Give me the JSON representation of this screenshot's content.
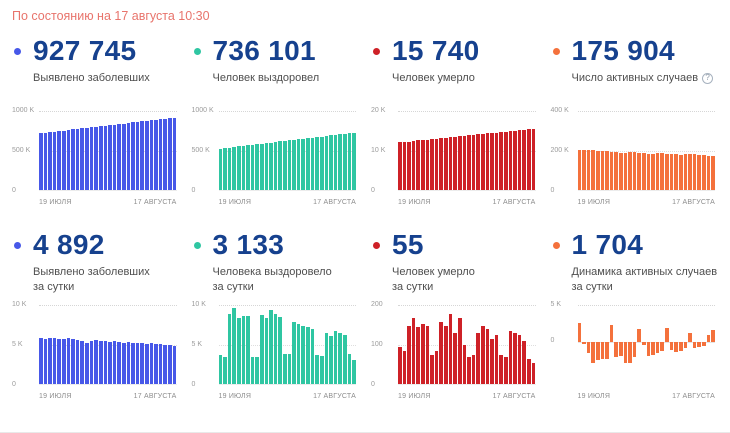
{
  "header": {
    "as_of_text": "По состоянию на 17 августа 10:30"
  },
  "colors": {
    "accent_blue": "#4758e8",
    "accent_teal": "#2fc6a2",
    "accent_red": "#ce2127",
    "accent_orange": "#f4713c",
    "number_navy": "#16418e",
    "header_coral": "#e8746c"
  },
  "cards": [
    {
      "value": "927 745",
      "label_line1": "Выявлено заболевших",
      "label_line2": "",
      "color": "#4758e8",
      "has_help": false
    },
    {
      "value": "736 101",
      "label_line1": "Человек выздоровел",
      "label_line2": "",
      "color": "#2fc6a2",
      "has_help": false
    },
    {
      "value": "15 740",
      "label_line1": "Человек умерло",
      "label_line2": "",
      "color": "#ce2127",
      "has_help": false
    },
    {
      "value": "175 904",
      "label_line1": "Число активных случаев",
      "label_line2": "",
      "color": "#f4713c",
      "has_help": true
    },
    {
      "value": "4 892",
      "label_line1": "Выявлено заболевших",
      "label_line2": "за сутки",
      "color": "#4758e8",
      "has_help": false
    },
    {
      "value": "3 133",
      "label_line1": "Человека выздоровело",
      "label_line2": "за сутки",
      "color": "#2fc6a2",
      "has_help": false
    },
    {
      "value": "55",
      "label_line1": "Человек умерло",
      "label_line2": "за сутки",
      "color": "#ce2127",
      "has_help": false
    },
    {
      "value": "1 704",
      "label_line1": "Динамика активных случаев",
      "label_line2": "за сутки",
      "color": "#f4713c",
      "has_help": false
    }
  ],
  "help_icon_glyph": "?",
  "chart_data": [
    {
      "type": "bar",
      "title": "Выявлено заболевших (всего)",
      "color": "#4758e8",
      "x_tick_labels": [
        "19 ИЮЛЯ",
        "17 АВГУСТА"
      ],
      "y_tick_labels": [
        "1000 K",
        "500 K",
        "0"
      ],
      "ylim": [
        0,
        1000
      ],
      "values_unit": "thousands",
      "grid": true,
      "legend": "none",
      "values": [
        727,
        734,
        741,
        748,
        755,
        762,
        769,
        776,
        782,
        789,
        796,
        803,
        810,
        817,
        824,
        831,
        838,
        845,
        852,
        859,
        866,
        873,
        880,
        886,
        893,
        900,
        907,
        914,
        921,
        928
      ]
    },
    {
      "type": "bar",
      "title": "Человек выздоровел (всего)",
      "color": "#2fc6a2",
      "x_tick_labels": [
        "19 ИЮЛЯ",
        "17 АВГУСТА"
      ],
      "y_tick_labels": [
        "1000 K",
        "500 K",
        "0"
      ],
      "ylim": [
        0,
        1000
      ],
      "values_unit": "thousands",
      "grid": true,
      "legend": "none",
      "values": [
        530,
        537,
        544,
        551,
        558,
        566,
        573,
        580,
        587,
        594,
        601,
        608,
        615,
        622,
        629,
        636,
        643,
        650,
        657,
        664,
        671,
        678,
        685,
        692,
        699,
        706,
        713,
        721,
        728,
        736
      ]
    },
    {
      "type": "bar",
      "title": "Человек умерло (всего)",
      "color": "#ce2127",
      "x_tick_labels": [
        "19 ИЮЛЯ",
        "17 АВГУСТА"
      ],
      "y_tick_labels": [
        "20 K",
        "10 K",
        "0"
      ],
      "ylim": [
        0,
        20
      ],
      "values_unit": "thousands",
      "grid": true,
      "legend": "none",
      "values": [
        12.2,
        12.3,
        12.4,
        12.6,
        12.7,
        12.8,
        12.9,
        13.0,
        13.2,
        13.3,
        13.4,
        13.5,
        13.6,
        13.8,
        13.9,
        14.0,
        14.1,
        14.3,
        14.4,
        14.5,
        14.6,
        14.7,
        14.9,
        15.0,
        15.1,
        15.2,
        15.3,
        15.5,
        15.6,
        15.7
      ]
    },
    {
      "type": "bar",
      "title": "Число активных случаев",
      "color": "#f4713c",
      "x_tick_labels": [
        "19 ИЮЛЯ",
        "17 АВГУСТА"
      ],
      "y_tick_labels": [
        "400 K",
        "200 K",
        "0"
      ],
      "ylim": [
        0,
        400
      ],
      "values_unit": "thousands",
      "grid": true,
      "legend": "none",
      "values": [
        205,
        207,
        206,
        204,
        202,
        200,
        198,
        196,
        193,
        190,
        192,
        194,
        193,
        191,
        189,
        187,
        186,
        188,
        189,
        187,
        185,
        183,
        182,
        184,
        185,
        183,
        181,
        179,
        177,
        176
      ]
    },
    {
      "type": "bar",
      "title": "Выявлено заболевших за сутки",
      "color": "#4758e8",
      "x_tick_labels": [
        "19 ИЮЛЯ",
        "17 АВГУСТА"
      ],
      "y_tick_labels": [
        "10 K",
        "5 K",
        "0"
      ],
      "ylim": [
        0,
        10
      ],
      "values_unit": "thousands",
      "grid": true,
      "legend": "none",
      "values": [
        5.9,
        5.8,
        5.9,
        5.9,
        5.8,
        5.8,
        5.9,
        5.8,
        5.7,
        5.5,
        5.3,
        5.5,
        5.6,
        5.5,
        5.5,
        5.4,
        5.5,
        5.4,
        5.3,
        5.4,
        5.3,
        5.3,
        5.2,
        5.1,
        5.2,
        5.1,
        5.1,
        5.0,
        5.0,
        4.9
      ]
    },
    {
      "type": "bar",
      "title": "Человека выздоровело за сутки",
      "color": "#2fc6a2",
      "x_tick_labels": [
        "19 ИЮЛЯ",
        "17 АВГУСТА"
      ],
      "y_tick_labels": [
        "10 K",
        "5 K",
        "0"
      ],
      "ylim": [
        0,
        10
      ],
      "values_unit": "thousands",
      "grid": true,
      "legend": "none",
      "values": [
        3.7,
        3.5,
        9.0,
        9.8,
        8.5,
        8.7,
        8.7,
        3.5,
        3.4,
        8.8,
        8.4,
        9.5,
        9.0,
        8.6,
        3.9,
        3.8,
        8.0,
        7.7,
        7.5,
        7.3,
        7.1,
        3.7,
        3.6,
        6.6,
        6.1,
        6.8,
        6.5,
        6.3,
        3.8,
        3.1
      ]
    },
    {
      "type": "bar",
      "title": "Человек умерло за сутки",
      "color": "#ce2127",
      "x_tick_labels": [
        "19 ИЮЛЯ",
        "17 АВГУСТА"
      ],
      "y_tick_labels": [
        "200",
        "100",
        "0"
      ],
      "ylim": [
        0,
        200
      ],
      "values_unit": "people",
      "grid": true,
      "legend": "none",
      "values": [
        95,
        85,
        150,
        170,
        145,
        155,
        150,
        75,
        85,
        160,
        150,
        180,
        130,
        170,
        100,
        70,
        75,
        130,
        150,
        140,
        115,
        125,
        75,
        70,
        135,
        130,
        125,
        110,
        65,
        55
      ]
    },
    {
      "type": "bar",
      "title": "Динамика активных случаев за сутки",
      "color": "#f4713c",
      "x_tick_labels": [
        "19 ИЮЛЯ",
        "17 АВГУСТА"
      ],
      "y_tick_labels": [
        "5 K",
        "0"
      ],
      "ylim": [
        -6,
        5
      ],
      "values_unit": "thousands",
      "grid": true,
      "legend": "none",
      "values": [
        2.6,
        -0.3,
        -1.6,
        -2.9,
        -2.5,
        -2.4,
        -2.4,
        2.4,
        -2.1,
        -2.0,
        -3.0,
        -2.9,
        -2.1,
        1.8,
        -0.4,
        -1.9,
        -1.8,
        -1.5,
        -1.3,
        1.9,
        -1.1,
        -1.4,
        -1.3,
        -0.9,
        1.3,
        -0.8,
        -0.7,
        -0.6,
        1.0,
        1.7
      ]
    }
  ]
}
